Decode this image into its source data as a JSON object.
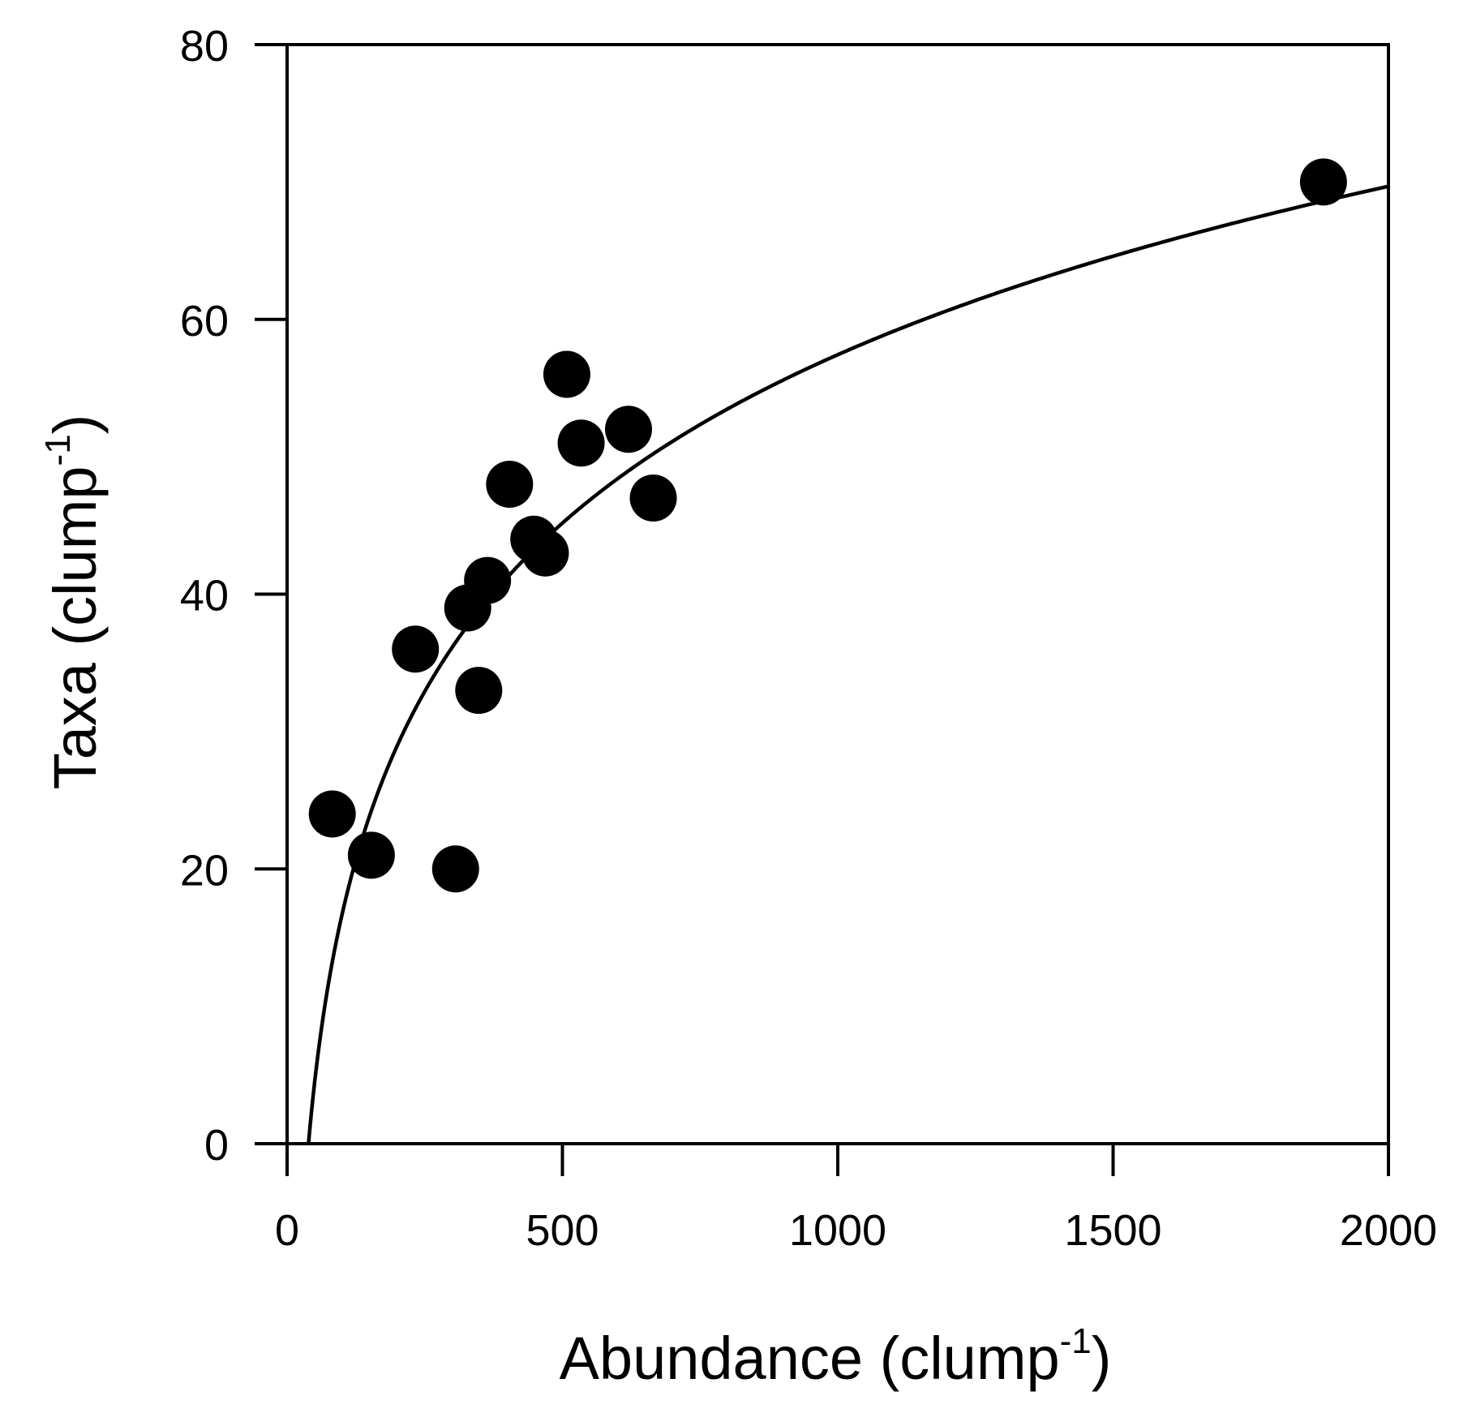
{
  "chart_data": {
    "type": "scatter",
    "title": "",
    "xlabel": {
      "main": "Abundance (clump",
      "sup": "-1",
      "close": ")"
    },
    "ylabel": {
      "main": "Taxa (clump",
      "sup": "-1",
      "close": ")"
    },
    "xlim": [
      0,
      2000
    ],
    "ylim": [
      0,
      80
    ],
    "xticks": [
      0,
      500,
      1000,
      1500,
      2000
    ],
    "yticks": [
      0,
      20,
      40,
      60,
      80
    ],
    "xtick_labels": [
      "0",
      "500",
      "1000",
      "1500",
      "2000"
    ],
    "ytick_labels": [
      "0",
      "20",
      "40",
      "60",
      "80"
    ],
    "grid": false,
    "legend": "none",
    "marker_color": "#000000",
    "series": [
      {
        "points": [
          {
            "x": 82,
            "y": 24
          },
          {
            "x": 153,
            "y": 21
          },
          {
            "x": 233,
            "y": 36
          },
          {
            "x": 306,
            "y": 20
          },
          {
            "x": 328,
            "y": 39
          },
          {
            "x": 348,
            "y": 33
          },
          {
            "x": 364,
            "y": 41
          },
          {
            "x": 404,
            "y": 48
          },
          {
            "x": 448,
            "y": 44
          },
          {
            "x": 469,
            "y": 43
          },
          {
            "x": 508,
            "y": 56
          },
          {
            "x": 534,
            "y": 51
          },
          {
            "x": 620,
            "y": 52
          },
          {
            "x": 665,
            "y": 47
          },
          {
            "x": 1882,
            "y": 70
          }
        ]
      }
    ],
    "fit_curve": {
      "form": "y = a + b*ln(x)",
      "a": -64.7,
      "b": 17.68,
      "x_start": 38.7,
      "x_end": 2000
    }
  }
}
